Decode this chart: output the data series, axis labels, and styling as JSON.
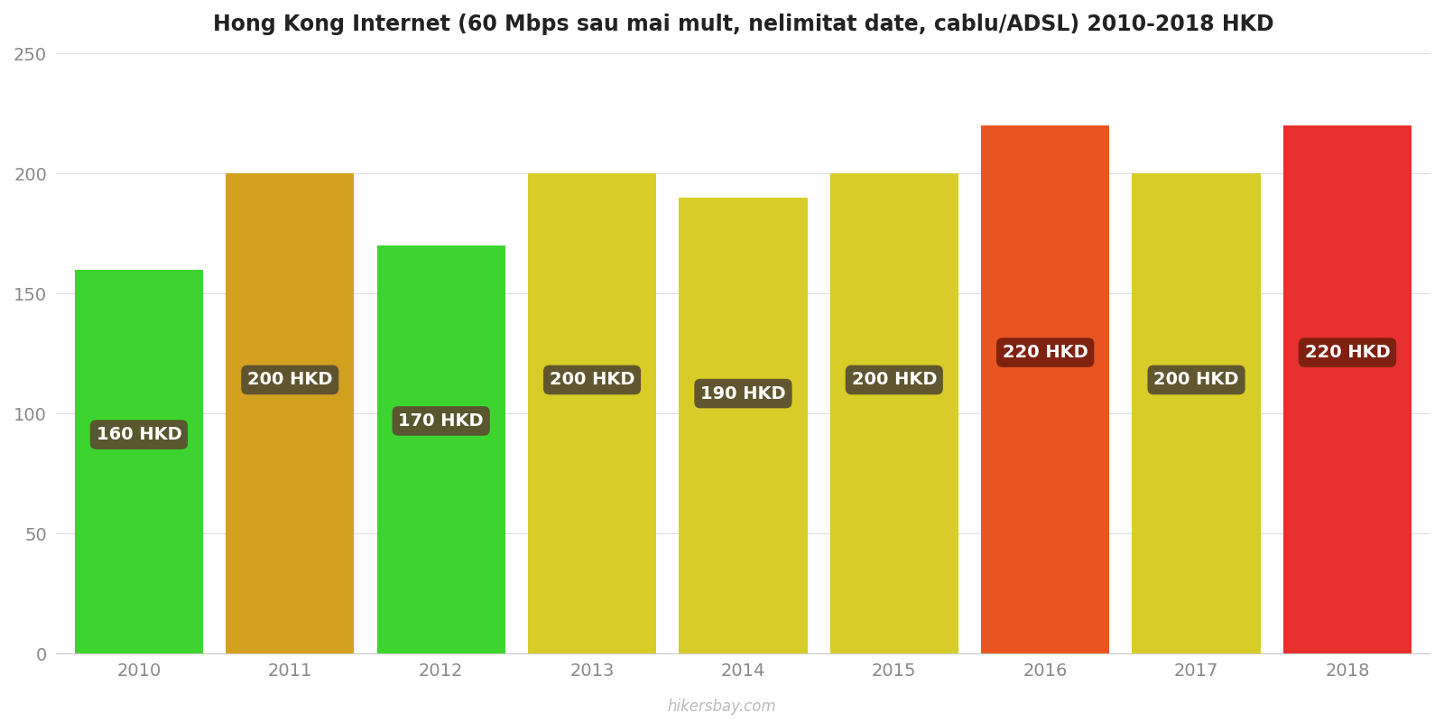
{
  "years": [
    2010,
    2011,
    2012,
    2013,
    2014,
    2015,
    2016,
    2017,
    2018
  ],
  "values": [
    160,
    200,
    170,
    200,
    190,
    200,
    220,
    200,
    220
  ],
  "bar_colors": [
    "#3dd430",
    "#d4a020",
    "#3dd430",
    "#d8cc28",
    "#d8cc28",
    "#d8cc28",
    "#e85520",
    "#d8cc28",
    "#e83030"
  ],
  "labels": [
    "160 HKD",
    "200 HKD",
    "170 HKD",
    "200 HKD",
    "190 HKD",
    "200 HKD",
    "220 HKD",
    "200 HKD",
    "220 HKD"
  ],
  "label_bg_colors": [
    "#5a5030",
    "#5a5030",
    "#5a5030",
    "#5a5030",
    "#5a5030",
    "#5a5030",
    "#7a2010",
    "#5a5030",
    "#7a2010"
  ],
  "title": "Hong Kong Internet (60 Mbps sau mai mult, nelimitat date, cablu/ADSL) 2010-2018 HKD",
  "ylim": [
    0,
    250
  ],
  "yticks": [
    0,
    50,
    100,
    150,
    200,
    250
  ],
  "label_text_color": "#ffffff",
  "watermark": "hikersbay.com",
  "background_color": "#ffffff",
  "title_fontsize": 17,
  "tick_fontsize": 14,
  "label_fontsize": 14,
  "bar_width": 0.85
}
